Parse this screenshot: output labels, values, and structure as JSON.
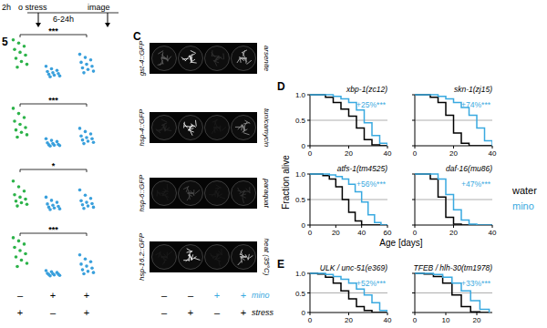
{
  "header": {
    "labels": [
      "2h",
      "o stress",
      "6-24h",
      "image"
    ]
  },
  "panel_b": {
    "label": "5",
    "ylim": [
      0,
      100
    ],
    "rows": [
      {
        "significance": "***",
        "columns": [
          {
            "color": "#2db34a",
            "values": [
              96,
              88,
              80,
              72,
              65,
              58,
              50,
              42,
              35,
              28
            ]
          },
          {
            "color": "#3aa0dc",
            "values": [
              30,
              24,
              20,
              17,
              14,
              12,
              10,
              8,
              6,
              4
            ]
          },
          {
            "color": "#3aa0dc",
            "values": [
              60,
              52,
              46,
              40,
              35,
              30,
              26,
              22,
              18,
              14
            ]
          }
        ]
      },
      {
        "significance": "***",
        "columns": [
          {
            "color": "#2db34a",
            "values": [
              98,
              85,
              75,
              66,
              58,
              50,
              44,
              38,
              32,
              26
            ]
          },
          {
            "color": "#3aa0dc",
            "values": [
              22,
              18,
              15,
              12,
              10,
              8,
              7,
              6,
              5,
              4
            ]
          },
          {
            "color": "#3aa0dc",
            "values": [
              48,
              40,
              34,
              29,
              25,
              22,
              19,
              16,
              13,
              10
            ]
          }
        ]
      },
      {
        "significance": "*",
        "columns": [
          {
            "color": "#2db34a",
            "values": [
              80,
              66,
              55,
              46,
              40,
              35,
              30,
              26,
              22,
              18
            ]
          },
          {
            "color": "#3aa0dc",
            "values": [
              40,
              32,
              27,
              23,
              20,
              17,
              15,
              13,
              11,
              9
            ]
          },
          {
            "color": "#3aa0dc",
            "values": [
              58,
              45,
              37,
              31,
              27,
              24,
              21,
              18,
              15,
              12
            ]
          }
        ]
      },
      {
        "significance": "***",
        "columns": [
          {
            "color": "#2db34a",
            "values": [
              98,
              90,
              82,
              74,
              66,
              58,
              50,
              42,
              34,
              26
            ]
          },
          {
            "color": "#3aa0dc",
            "values": [
              16,
              13,
              11,
              9,
              8,
              7,
              6,
              5,
              4,
              3
            ]
          },
          {
            "color": "#3aa0dc",
            "values": [
              55,
              45,
              38,
              32,
              27,
              22,
              18,
              14,
              11,
              8
            ]
          }
        ]
      }
    ],
    "conditions": {
      "mino": [
        "–",
        "+",
        "+"
      ],
      "stress": [
        "+",
        "–",
        "+"
      ]
    }
  },
  "panel_c": {
    "label": "C",
    "rows": [
      {
        "reporter": "gst-4::GFP",
        "stress": "arsenite",
        "intensity": [
          0.35,
          0.9,
          0.15,
          0.7
        ]
      },
      {
        "reporter": "hsp-4::GFP",
        "stress": "tunicamycin",
        "intensity": [
          0.1,
          0.95,
          0.05,
          0.55
        ]
      },
      {
        "reporter": "hsp-6::GFP",
        "stress": "paraquat",
        "intensity": [
          0.05,
          0.25,
          0.05,
          0.15
        ]
      },
      {
        "reporter": "hsp-16.2::GFP",
        "stress": "heat (35°C)",
        "intensity": [
          0.05,
          0.95,
          0.05,
          0.75
        ]
      }
    ],
    "conditions": {
      "mino": [
        "–",
        "–",
        "+",
        "+"
      ],
      "stress": [
        "–",
        "+",
        "–",
        "+"
      ]
    },
    "condition_labels": {
      "mino": "mino",
      "stress": "stress"
    },
    "color": "#39a9e0"
  },
  "panel_d": {
    "label": "D"
  },
  "panel_e": {
    "label": "E"
  },
  "axis_labels": {
    "y": "Fraction alive",
    "x": "Age [days]"
  },
  "chart_data": [
    {
      "type": "line",
      "title": "xbp-1(zc12)",
      "annotation": "+25%***",
      "x": [
        0,
        4,
        8,
        12,
        16,
        20,
        24,
        28,
        32,
        36,
        40
      ],
      "series": [
        {
          "name": "water",
          "color": "#000000",
          "values": [
            1,
            1,
            0.95,
            0.85,
            0.72,
            0.58,
            0.35,
            0.12,
            0.02,
            0,
            0
          ]
        },
        {
          "name": "mino",
          "color": "#39a9e0",
          "values": [
            1,
            1,
            1,
            0.97,
            0.92,
            0.85,
            0.7,
            0.45,
            0.2,
            0.05,
            0
          ]
        }
      ],
      "xlim": [
        0,
        40
      ],
      "xticks": [
        0,
        20,
        40
      ],
      "ylim": [
        0,
        1
      ],
      "yticks": [
        0,
        0.5,
        {
          "value": 1,
          "label": "1.0"
        }
      ],
      "grid": true
    },
    {
      "type": "line",
      "title": "skn-1(zj15)",
      "annotation": "+74%***",
      "x": [
        0,
        4,
        8,
        12,
        16,
        20,
        24,
        28,
        32,
        36,
        40
      ],
      "series": [
        {
          "name": "water",
          "color": "#000000",
          "values": [
            1,
            1,
            0.95,
            0.85,
            0.6,
            0.25,
            0.05,
            0,
            0,
            0,
            0
          ]
        },
        {
          "name": "mino",
          "color": "#39a9e0",
          "values": [
            1,
            1,
            1,
            0.97,
            0.92,
            0.85,
            0.75,
            0.6,
            0.35,
            0.1,
            0
          ]
        }
      ],
      "xlim": [
        0,
        40
      ],
      "xticks": [
        0,
        20,
        40
      ],
      "ylim": [
        0,
        1
      ],
      "yticks": [
        0,
        0.5,
        {
          "value": 1,
          "label": "1.0"
        }
      ],
      "grid": true,
      "tick_labels": "x"
    },
    {
      "type": "line",
      "title": "atfs-1(tm4525)",
      "annotation": "+56%***",
      "x": [
        0,
        5,
        10,
        15,
        20,
        25,
        30,
        35,
        40,
        45,
        50,
        55,
        60
      ],
      "series": [
        {
          "name": "water",
          "color": "#000000",
          "values": [
            1,
            1,
            0.97,
            0.9,
            0.75,
            0.5,
            0.25,
            0.08,
            0,
            0,
            0,
            0,
            0
          ]
        },
        {
          "name": "mino",
          "color": "#39a9e0",
          "values": [
            1,
            1,
            1,
            0.98,
            0.95,
            0.9,
            0.8,
            0.65,
            0.45,
            0.2,
            0.05,
            0,
            0
          ]
        }
      ],
      "xlim": [
        0,
        60
      ],
      "xticks": [
        0,
        20,
        40,
        60
      ],
      "ylim": [
        0,
        1
      ],
      "yticks": [
        0,
        0.5,
        {
          "value": 1,
          "label": "1.0"
        }
      ],
      "grid": true
    },
    {
      "type": "line",
      "title": "daf-16(mu86)",
      "annotation": "+47%***",
      "x": [
        0,
        4,
        8,
        12,
        16,
        20,
        24,
        28,
        32,
        36,
        40
      ],
      "series": [
        {
          "name": "water",
          "color": "#000000",
          "values": [
            1,
            1,
            0.9,
            0.55,
            0.15,
            0.02,
            0,
            0,
            0,
            0,
            0
          ]
        },
        {
          "name": "mino",
          "color": "#39a9e0",
          "values": [
            1,
            1,
            1,
            0.9,
            0.6,
            0.3,
            0.1,
            0.02,
            0,
            0,
            0
          ]
        }
      ],
      "xlim": [
        0,
        40
      ],
      "xticks": [
        0,
        20,
        40
      ],
      "ylim": [
        0,
        1
      ],
      "yticks": [
        0,
        0.5,
        {
          "value": 1,
          "label": "1.0"
        }
      ],
      "grid": true,
      "tick_labels": "x",
      "legend": "right"
    },
    {
      "type": "line",
      "title": "ULK / unc-51(e369)",
      "annotation": "+52%***",
      "x": [
        0,
        4,
        8,
        12,
        16,
        20,
        24,
        28,
        32,
        36,
        40
      ],
      "series": [
        {
          "name": "water",
          "color": "#000000",
          "values": [
            1,
            0.98,
            0.9,
            0.75,
            0.55,
            0.35,
            0.15,
            0.05,
            0,
            0,
            0
          ]
        },
        {
          "name": "mino",
          "color": "#39a9e0",
          "values": [
            1,
            1,
            0.97,
            0.92,
            0.85,
            0.75,
            0.6,
            0.45,
            0.25,
            0.05,
            0
          ]
        }
      ],
      "xlim": [
        0,
        40
      ],
      "xticks": [
        0,
        20,
        40
      ],
      "ylim": [
        0,
        1
      ],
      "yticks": [
        0,
        0.5,
        {
          "value": 1,
          "label": "1.0"
        }
      ],
      "grid": true
    },
    {
      "type": "line",
      "title": "TFEB / hlh-30(tm1978)",
      "annotation": "+33%***",
      "x": [
        0,
        3,
        6,
        9,
        12,
        15,
        18,
        21,
        24
      ],
      "series": [
        {
          "name": "water",
          "color": "#000000",
          "values": [
            1,
            0.98,
            0.92,
            0.75,
            0.45,
            0.15,
            0.02,
            0,
            0
          ]
        },
        {
          "name": "mino",
          "color": "#39a9e0",
          "values": [
            1,
            1,
            0.97,
            0.9,
            0.75,
            0.55,
            0.3,
            0.08,
            0
          ]
        }
      ],
      "xlim": [
        0,
        25
      ],
      "xticks": [
        0,
        10,
        20
      ],
      "ylim": [
        0,
        1
      ],
      "yticks": [
        0,
        0.5,
        {
          "value": 1,
          "label": "1.0"
        }
      ],
      "grid": true,
      "tick_labels": "x"
    }
  ]
}
